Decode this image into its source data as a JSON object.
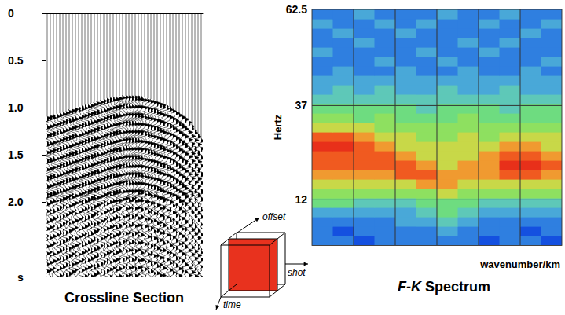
{
  "chart_data": [
    {
      "type": "wiggle",
      "title": "Crossline Section",
      "ylabel": "s",
      "xlim": [
        0,
        1
      ],
      "ylim": [
        0,
        2.8
      ],
      "yticks": [
        0,
        0.5,
        {
          "value": 1,
          "label": "1.0"
        },
        1.5,
        {
          "value": 2,
          "label": "2.0"
        }
      ],
      "x": [
        0,
        0.1,
        0.2,
        0.3,
        0.4,
        0.5,
        0.6,
        0.7,
        0.8,
        0.9,
        1.0
      ],
      "values": [
        1.1,
        1.05,
        1.0,
        0.95,
        0.9,
        0.87,
        0.88,
        0.93,
        1.0,
        1.12,
        1.35
      ],
      "tick_labels": "y",
      "annotations": [
        "offset",
        "shot",
        "time"
      ]
    },
    {
      "type": "heatmap",
      "title": "F-K Spectrum",
      "ylabel": "Hertz",
      "xlabel": "wavenumber/km",
      "xlim": [
        0,
        6
      ],
      "xticks": [
        0,
        1,
        2,
        3,
        4,
        5,
        6
      ],
      "ylim": [
        0,
        62.5
      ],
      "yticks": [
        12,
        37,
        62.5
      ],
      "grid": true,
      "tick_labels": "y",
      "zlim": [
        0,
        10
      ],
      "x": [
        0.25,
        0.75,
        1.25,
        1.75,
        2.25,
        2.75,
        3.25,
        3.75,
        4.25,
        4.75,
        5.25,
        5.75
      ],
      "y": [
        1.25,
        3.75,
        6.25,
        8.75,
        11.25,
        13.75,
        16.25,
        18.75,
        21.25,
        23.75,
        26.25,
        28.75,
        31.25,
        33.75,
        36.25,
        38.75,
        41.25,
        43.75,
        46.25,
        48.75,
        51.25,
        53.75,
        56.25,
        58.75,
        61.25
      ],
      "cells": [
        [
          2,
          2,
          1,
          2,
          2,
          2,
          2,
          2,
          1,
          2,
          2,
          1
        ],
        [
          2,
          1,
          2,
          2,
          2,
          2,
          3,
          2,
          2,
          2,
          1,
          2
        ],
        [
          2,
          2,
          2,
          2,
          3,
          3,
          4,
          3,
          2,
          2,
          2,
          2
        ],
        [
          3,
          3,
          3,
          3,
          3,
          4,
          5,
          4,
          3,
          3,
          3,
          3
        ],
        [
          5,
          5,
          4,
          4,
          4,
          5,
          5,
          5,
          4,
          4,
          4,
          4
        ],
        [
          6,
          6,
          6,
          6,
          6,
          6,
          7,
          6,
          6,
          6,
          6,
          6
        ],
        [
          7,
          7,
          7,
          7,
          7,
          8,
          8,
          7,
          7,
          7,
          7,
          7
        ],
        [
          8,
          8,
          8,
          8,
          9,
          9,
          8,
          8,
          8,
          9,
          9,
          8
        ],
        [
          9,
          9,
          9,
          9,
          9,
          8,
          7,
          8,
          8,
          10,
          10,
          9
        ],
        [
          9,
          9,
          9,
          9,
          8,
          7,
          7,
          7,
          8,
          9,
          9,
          8
        ],
        [
          10,
          10,
          9,
          8,
          7,
          7,
          7,
          7,
          7,
          8,
          8,
          7
        ],
        [
          9,
          9,
          8,
          7,
          7,
          6,
          6,
          7,
          6,
          7,
          7,
          7
        ],
        [
          7,
          7,
          7,
          6,
          6,
          6,
          6,
          6,
          6,
          6,
          6,
          6
        ],
        [
          6,
          6,
          5,
          6,
          5,
          5,
          5,
          6,
          5,
          5,
          5,
          5
        ],
        [
          5,
          5,
          5,
          5,
          5,
          4,
          5,
          5,
          5,
          4,
          5,
          5
        ],
        [
          4,
          4,
          4,
          4,
          4,
          4,
          4,
          4,
          4,
          4,
          4,
          4
        ],
        [
          3,
          4,
          3,
          4,
          3,
          3,
          4,
          3,
          3,
          4,
          3,
          3
        ],
        [
          3,
          3,
          3,
          3,
          3,
          3,
          3,
          3,
          3,
          3,
          3,
          3
        ],
        [
          2,
          3,
          2,
          2,
          3,
          2,
          2,
          3,
          2,
          2,
          3,
          2
        ],
        [
          2,
          2,
          2,
          3,
          2,
          2,
          3,
          2,
          2,
          2,
          2,
          3
        ],
        [
          3,
          2,
          2,
          2,
          2,
          3,
          2,
          2,
          3,
          2,
          2,
          2
        ],
        [
          2,
          2,
          3,
          2,
          2,
          2,
          2,
          3,
          2,
          3,
          2,
          2
        ],
        [
          2,
          3,
          2,
          2,
          3,
          2,
          2,
          2,
          2,
          2,
          3,
          2
        ],
        [
          3,
          2,
          2,
          3,
          2,
          3,
          2,
          2,
          3,
          2,
          2,
          3
        ],
        [
          2,
          2,
          3,
          2,
          2,
          2,
          3,
          2,
          2,
          3,
          2,
          2
        ]
      ]
    }
  ]
}
